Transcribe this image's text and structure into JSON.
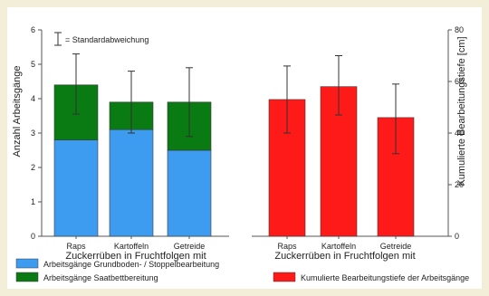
{
  "chart_data": [
    {
      "type": "bar",
      "stacked": true,
      "categories": [
        "Raps",
        "Kartoffeln",
        "Getreide"
      ],
      "xlabel": "Zuckerrüben in Fruchtfolgen mit",
      "ylabel": "Anzahl Arbeitsgänge",
      "ylim": [
        0,
        6
      ],
      "yticks": [
        0,
        1,
        2,
        3,
        4,
        5,
        6
      ],
      "grid": false,
      "series": [
        {
          "name": "Arbeitsgänge Grundboden- / Stoppelbearbeitung",
          "values": [
            2.8,
            3.1,
            2.5
          ],
          "color": "#3d9bf0"
        },
        {
          "name": "Arbeitsgänge Saatbettbereitung",
          "values": [
            1.6,
            0.8,
            1.4
          ],
          "color": "#0a7a12"
        }
      ],
      "error_bars": {
        "center": [
          4.4,
          3.9,
          3.9
        ],
        "upper": [
          5.3,
          4.8,
          4.9
        ],
        "lower": [
          3.55,
          3.0,
          2.9
        ]
      },
      "annotation": "= Standardabweichung"
    },
    {
      "type": "bar",
      "categories": [
        "Raps",
        "Kartoffeln",
        "Getreide"
      ],
      "xlabel": "Zuckerrüben in Fruchtfolgen mit",
      "ylabel": "Kumulierte Bearbeitungstiefe [cm]",
      "axis_side": "right",
      "ylim": [
        0,
        80
      ],
      "yticks": [
        0,
        20,
        40,
        60,
        80
      ],
      "grid": false,
      "series": [
        {
          "name": "Kumulierte Bearbeitungstiefe der Arbeitsgänge",
          "values": [
            53,
            58,
            46
          ],
          "color": "#ff1a1a"
        }
      ],
      "error_bars": {
        "center": [
          53,
          58,
          46
        ],
        "upper": [
          66,
          70,
          59
        ],
        "lower": [
          40,
          47,
          32
        ]
      }
    }
  ],
  "legend": {
    "items": [
      {
        "label": "Arbeitsgänge Grundboden- / Stoppelbearbeitung",
        "color": "#3d9bf0"
      },
      {
        "label": "Arbeitsgänge Saatbettbereitung",
        "color": "#0a7a12"
      },
      {
        "label": "Kumulierte Bearbeitungstiefe der Arbeitsgänge",
        "color": "#ff1a1a"
      }
    ]
  }
}
